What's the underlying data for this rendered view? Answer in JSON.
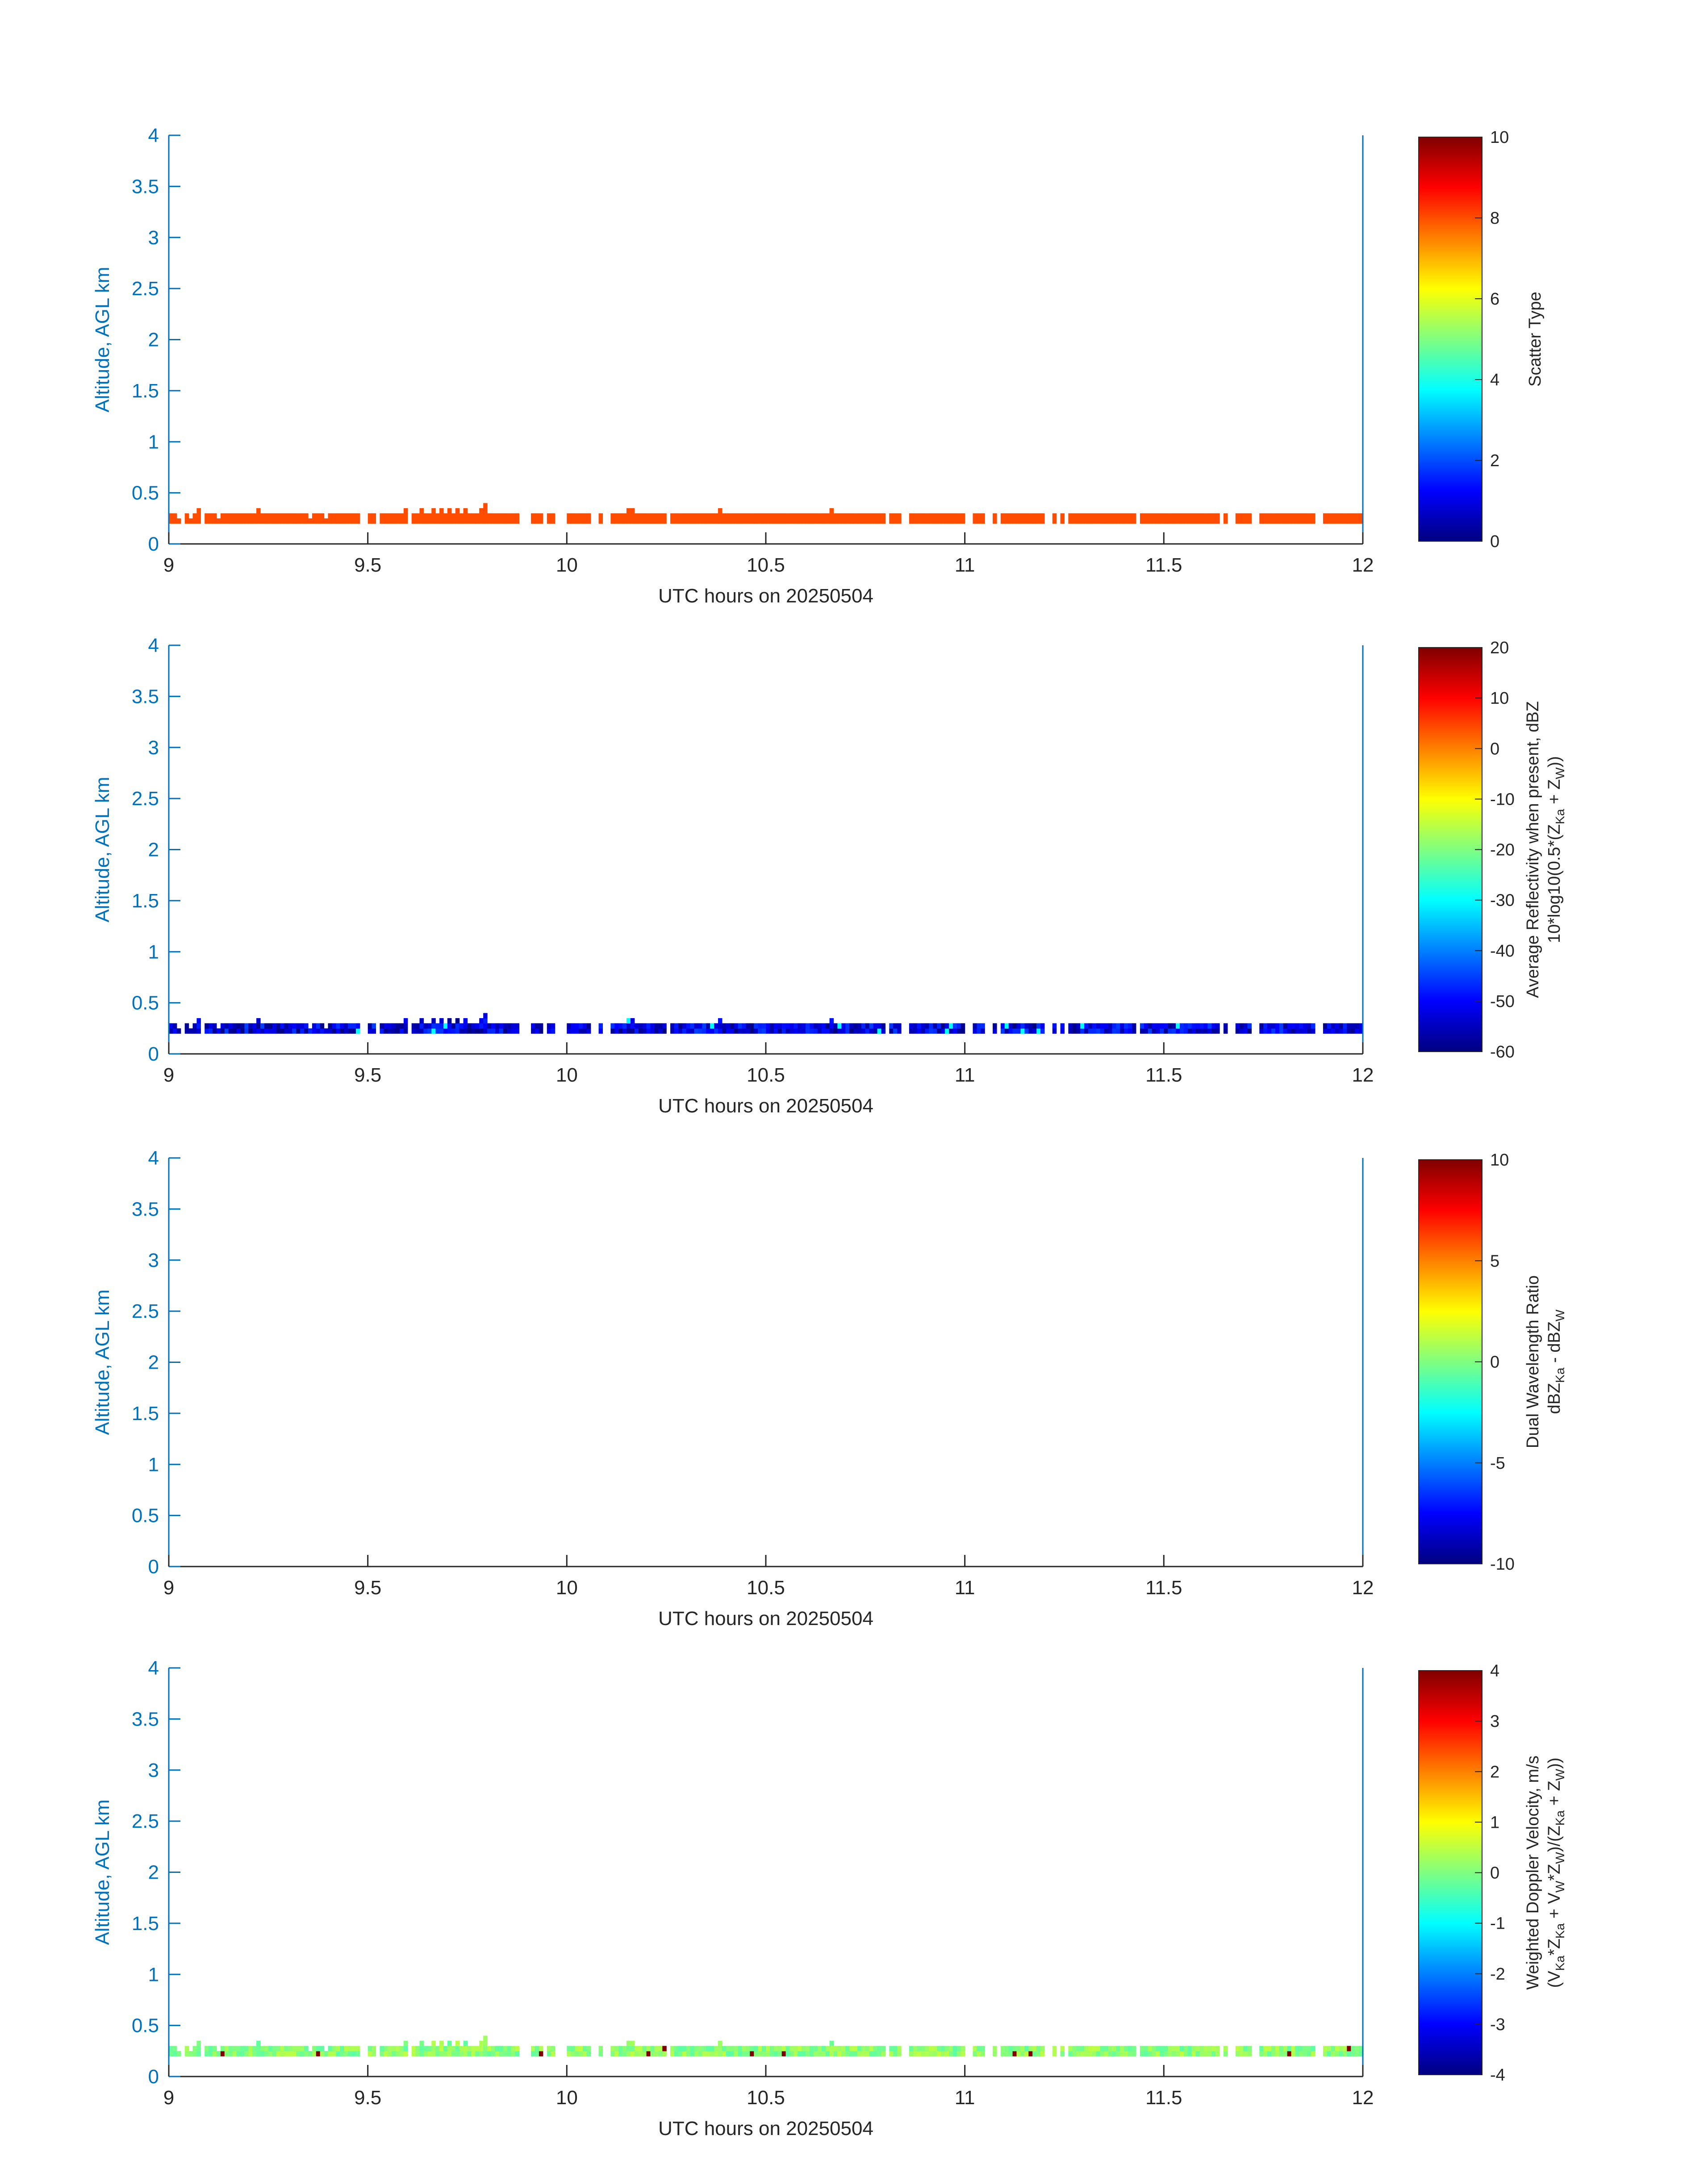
{
  "chart_data": [
    {
      "type": "heatmap",
      "xlabel": "UTC hours on 20250504",
      "ylabel": "Altitude, AGL km",
      "xlim": [
        9,
        12
      ],
      "ylim": [
        0,
        4
      ],
      "xticks": [
        "9",
        "9.5",
        "10",
        "10.5",
        "11",
        "11.5",
        "12"
      ],
      "yticks": [
        "0",
        "0.5",
        "1",
        "1.5",
        "2",
        "2.5",
        "3",
        "3.5",
        "4"
      ],
      "colorbar": {
        "label": "Scatter Type",
        "label_line2": "",
        "ticks": [
          "0",
          "2",
          "4",
          "6",
          "8",
          "10"
        ],
        "range": [
          0,
          10
        ],
        "colormap": "jet"
      },
      "constant_value": 8,
      "value_min": 8,
      "value_max": 8,
      "seed": 11,
      "texture": "none"
    },
    {
      "type": "heatmap",
      "xlabel": "UTC hours on 20250504",
      "ylabel": "Altitude, AGL km",
      "xlim": [
        9,
        12
      ],
      "ylim": [
        0,
        4
      ],
      "xticks": [
        "9",
        "9.5",
        "10",
        "10.5",
        "11",
        "11.5",
        "12"
      ],
      "yticks": [
        "0",
        "0.5",
        "1",
        "1.5",
        "2",
        "2.5",
        "3",
        "3.5",
        "4"
      ],
      "colorbar": {
        "label": "Average Reflectivity when present, dBZ",
        "label_line2": "10*log10(0.5*(Z",
        "label_line2_parts": [
          "10*log10(0.5*(Z",
          "Ka",
          " + Z",
          "W",
          "))"
        ],
        "ticks": [
          "-60",
          "-50",
          "-40",
          "-30",
          "-20",
          "-10",
          "0",
          "10",
          "20"
        ],
        "range": [
          -60,
          20
        ],
        "colormap": "jet"
      },
      "value_min": -60,
      "value_max": -45,
      "rare_high": -30,
      "seed": 23,
      "texture": "reflectivity"
    },
    {
      "type": "heatmap",
      "xlabel": "UTC hours on 20250504",
      "ylabel": "Altitude, AGL km",
      "xlim": [
        9,
        12
      ],
      "ylim": [
        0,
        4
      ],
      "xticks": [
        "9",
        "9.5",
        "10",
        "10.5",
        "11",
        "11.5",
        "12"
      ],
      "yticks": [
        "0",
        "0.5",
        "1",
        "1.5",
        "2",
        "2.5",
        "3",
        "3.5",
        "4"
      ],
      "colorbar": {
        "label": "Dual Wavelength Ratio",
        "label_line2_parts": [
          "dBZ",
          "Ka",
          " - dBZ",
          "W",
          ""
        ],
        "ticks": [
          "-10",
          "-5",
          "0",
          "5",
          "10"
        ],
        "range": [
          -10,
          10
        ],
        "colormap": "jet"
      },
      "empty": true,
      "texture": "none"
    },
    {
      "type": "heatmap",
      "xlabel": "UTC hours on 20250504",
      "ylabel": "Altitude, AGL km",
      "xlim": [
        9,
        12
      ],
      "ylim": [
        0,
        4
      ],
      "xticks": [
        "9",
        "9.5",
        "10",
        "10.5",
        "11",
        "11.5",
        "12"
      ],
      "yticks": [
        "0",
        "0.5",
        "1",
        "1.5",
        "2",
        "2.5",
        "3",
        "3.5",
        "4"
      ],
      "colorbar": {
        "label": "Weighted Doppler Velocity, m/s",
        "label_line2_parts": [
          "(V",
          "Ka",
          "*Z",
          "Ka",
          " + V",
          "W",
          "*Z",
          "W",
          ")/(Z",
          "Ka",
          " + Z",
          "W",
          "))"
        ],
        "ticks": [
          "-4",
          "-3",
          "-2",
          "-1",
          "0",
          "1",
          "2",
          "3",
          "4"
        ],
        "range": [
          -4,
          4
        ],
        "colormap": "jet"
      },
      "value_min": -0.3,
      "value_max": 0.5,
      "rare_high": 4,
      "seed": 37,
      "texture": "velocity"
    }
  ],
  "profile": {
    "time_start": 9,
    "time_end": 12,
    "bin_hours": 0.01,
    "base_km": 0.2,
    "cell_km": 0.05,
    "col_heights": [
      2,
      2,
      1,
      2,
      2,
      1,
      2,
      3,
      2,
      2,
      2,
      2,
      1,
      2,
      2,
      2,
      2,
      2,
      2,
      2,
      2,
      2,
      3,
      2,
      2,
      2,
      2,
      2,
      2,
      2,
      2,
      2,
      2,
      2,
      2,
      1,
      2,
      2,
      2,
      1,
      2,
      2,
      2,
      2,
      2,
      2,
      2,
      2,
      2,
      2,
      2,
      2,
      3,
      2,
      2,
      2,
      2,
      2,
      2,
      3,
      3,
      2,
      2,
      3,
      2,
      2,
      3,
      2,
      3,
      2,
      3,
      2,
      3,
      2,
      3,
      2,
      2,
      2,
      3,
      4,
      2,
      2,
      2,
      2,
      2,
      2,
      2,
      2,
      2,
      3,
      2,
      2,
      2,
      2,
      2,
      2,
      2,
      2,
      2,
      2,
      2,
      2,
      2,
      2,
      2,
      2,
      2,
      2,
      2,
      2,
      2,
      2,
      2,
      2,
      2,
      3,
      3,
      2,
      2,
      2,
      2,
      2,
      2,
      2,
      2,
      2,
      2,
      2,
      2,
      2,
      2,
      2,
      2,
      2,
      2,
      2,
      2,
      2,
      3,
      2,
      2,
      2,
      2,
      2,
      2,
      2,
      2,
      2,
      2,
      2,
      2,
      2,
      2,
      2,
      2,
      2,
      2,
      2,
      2,
      2,
      2,
      2,
      2,
      2,
      2,
      2,
      3,
      2,
      2,
      2,
      2,
      2,
      2,
      2,
      2,
      2,
      2,
      2,
      2,
      2,
      2,
      2,
      2,
      2,
      2,
      2,
      2,
      2,
      2,
      2,
      2,
      2,
      2,
      2,
      2,
      2,
      2,
      2,
      2,
      2,
      2,
      2,
      2,
      2,
      2,
      2,
      2,
      2,
      2,
      2,
      2,
      2,
      2,
      2,
      2,
      2,
      2,
      2,
      2,
      2,
      2,
      2,
      2,
      2,
      2,
      2,
      2,
      2,
      2,
      2,
      2,
      2,
      2,
      2,
      2,
      2,
      2,
      2,
      2,
      2,
      2,
      2,
      2,
      2,
      2,
      2,
      2,
      2,
      2,
      2,
      2,
      2,
      2,
      2,
      2,
      2,
      2,
      2,
      2,
      2,
      2,
      2,
      2,
      2,
      2,
      2,
      2,
      2,
      2,
      2,
      2,
      2,
      2,
      2,
      2,
      2,
      2,
      2,
      2,
      2,
      2,
      2,
      2,
      2,
      2,
      2,
      2,
      2,
      2,
      2,
      2,
      2,
      2,
      2,
      2,
      2,
      2,
      2,
      2,
      2,
      2,
      2
    ],
    "gaps": [
      [
        9.03,
        9.035
      ],
      [
        9.08,
        9.09
      ],
      [
        9.48,
        9.5
      ],
      [
        9.52,
        9.53
      ],
      [
        9.6,
        9.61
      ],
      [
        9.88,
        9.91
      ],
      [
        9.94,
        9.95
      ],
      [
        9.97,
        10.0
      ],
      [
        10.06,
        10.08
      ],
      [
        10.09,
        10.11
      ],
      [
        10.25,
        10.26
      ],
      [
        10.8,
        10.81
      ],
      [
        10.84,
        10.86
      ],
      [
        11.0,
        11.02
      ],
      [
        11.05,
        11.07
      ],
      [
        11.08,
        11.09
      ],
      [
        11.2,
        11.22
      ],
      [
        11.23,
        11.24
      ],
      [
        11.25,
        11.26
      ],
      [
        11.43,
        11.44
      ],
      [
        11.64,
        11.65
      ],
      [
        11.66,
        11.68
      ],
      [
        11.72,
        11.74
      ],
      [
        11.88,
        11.9
      ]
    ]
  }
}
